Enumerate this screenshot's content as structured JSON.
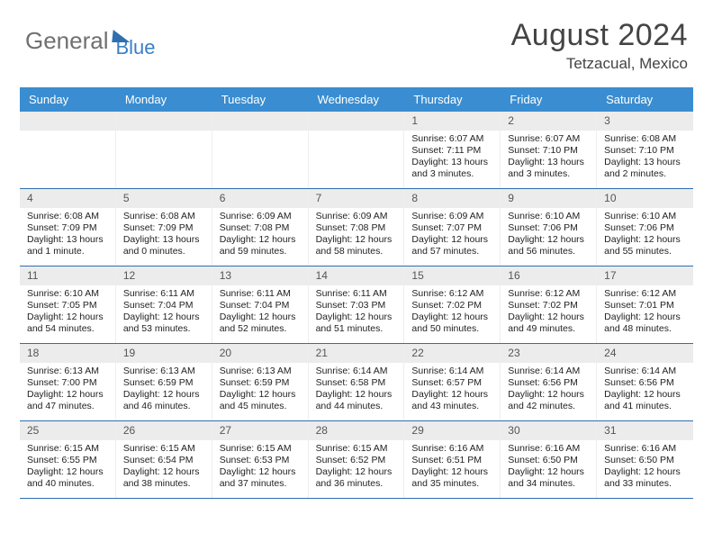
{
  "logo": {
    "part1": "General",
    "part2": "Blue"
  },
  "title": "August 2024",
  "location": "Tetzacual, Mexico",
  "colors": {
    "header_bg": "#3a8dd0",
    "border": "#2f6fb0",
    "daynum_bg": "#ececec",
    "text": "#222222",
    "logo_grey": "#707070",
    "logo_blue": "#3a7fc4"
  },
  "day_names": [
    "Sunday",
    "Monday",
    "Tuesday",
    "Wednesday",
    "Thursday",
    "Friday",
    "Saturday"
  ],
  "weeks": [
    [
      {
        "day": "",
        "sunrise": "",
        "sunset": "",
        "daylight1": "",
        "daylight2": "",
        "empty": true
      },
      {
        "day": "",
        "sunrise": "",
        "sunset": "",
        "daylight1": "",
        "daylight2": "",
        "empty": true
      },
      {
        "day": "",
        "sunrise": "",
        "sunset": "",
        "daylight1": "",
        "daylight2": "",
        "empty": true
      },
      {
        "day": "",
        "sunrise": "",
        "sunset": "",
        "daylight1": "",
        "daylight2": "",
        "empty": true
      },
      {
        "day": "1",
        "sunrise": "Sunrise: 6:07 AM",
        "sunset": "Sunset: 7:11 PM",
        "daylight1": "Daylight: 13 hours",
        "daylight2": "and 3 minutes."
      },
      {
        "day": "2",
        "sunrise": "Sunrise: 6:07 AM",
        "sunset": "Sunset: 7:10 PM",
        "daylight1": "Daylight: 13 hours",
        "daylight2": "and 3 minutes."
      },
      {
        "day": "3",
        "sunrise": "Sunrise: 6:08 AM",
        "sunset": "Sunset: 7:10 PM",
        "daylight1": "Daylight: 13 hours",
        "daylight2": "and 2 minutes."
      }
    ],
    [
      {
        "day": "4",
        "sunrise": "Sunrise: 6:08 AM",
        "sunset": "Sunset: 7:09 PM",
        "daylight1": "Daylight: 13 hours",
        "daylight2": "and 1 minute."
      },
      {
        "day": "5",
        "sunrise": "Sunrise: 6:08 AM",
        "sunset": "Sunset: 7:09 PM",
        "daylight1": "Daylight: 13 hours",
        "daylight2": "and 0 minutes."
      },
      {
        "day": "6",
        "sunrise": "Sunrise: 6:09 AM",
        "sunset": "Sunset: 7:08 PM",
        "daylight1": "Daylight: 12 hours",
        "daylight2": "and 59 minutes."
      },
      {
        "day": "7",
        "sunrise": "Sunrise: 6:09 AM",
        "sunset": "Sunset: 7:08 PM",
        "daylight1": "Daylight: 12 hours",
        "daylight2": "and 58 minutes."
      },
      {
        "day": "8",
        "sunrise": "Sunrise: 6:09 AM",
        "sunset": "Sunset: 7:07 PM",
        "daylight1": "Daylight: 12 hours",
        "daylight2": "and 57 minutes."
      },
      {
        "day": "9",
        "sunrise": "Sunrise: 6:10 AM",
        "sunset": "Sunset: 7:06 PM",
        "daylight1": "Daylight: 12 hours",
        "daylight2": "and 56 minutes."
      },
      {
        "day": "10",
        "sunrise": "Sunrise: 6:10 AM",
        "sunset": "Sunset: 7:06 PM",
        "daylight1": "Daylight: 12 hours",
        "daylight2": "and 55 minutes."
      }
    ],
    [
      {
        "day": "11",
        "sunrise": "Sunrise: 6:10 AM",
        "sunset": "Sunset: 7:05 PM",
        "daylight1": "Daylight: 12 hours",
        "daylight2": "and 54 minutes."
      },
      {
        "day": "12",
        "sunrise": "Sunrise: 6:11 AM",
        "sunset": "Sunset: 7:04 PM",
        "daylight1": "Daylight: 12 hours",
        "daylight2": "and 53 minutes."
      },
      {
        "day": "13",
        "sunrise": "Sunrise: 6:11 AM",
        "sunset": "Sunset: 7:04 PM",
        "daylight1": "Daylight: 12 hours",
        "daylight2": "and 52 minutes."
      },
      {
        "day": "14",
        "sunrise": "Sunrise: 6:11 AM",
        "sunset": "Sunset: 7:03 PM",
        "daylight1": "Daylight: 12 hours",
        "daylight2": "and 51 minutes."
      },
      {
        "day": "15",
        "sunrise": "Sunrise: 6:12 AM",
        "sunset": "Sunset: 7:02 PM",
        "daylight1": "Daylight: 12 hours",
        "daylight2": "and 50 minutes."
      },
      {
        "day": "16",
        "sunrise": "Sunrise: 6:12 AM",
        "sunset": "Sunset: 7:02 PM",
        "daylight1": "Daylight: 12 hours",
        "daylight2": "and 49 minutes."
      },
      {
        "day": "17",
        "sunrise": "Sunrise: 6:12 AM",
        "sunset": "Sunset: 7:01 PM",
        "daylight1": "Daylight: 12 hours",
        "daylight2": "and 48 minutes."
      }
    ],
    [
      {
        "day": "18",
        "sunrise": "Sunrise: 6:13 AM",
        "sunset": "Sunset: 7:00 PM",
        "daylight1": "Daylight: 12 hours",
        "daylight2": "and 47 minutes."
      },
      {
        "day": "19",
        "sunrise": "Sunrise: 6:13 AM",
        "sunset": "Sunset: 6:59 PM",
        "daylight1": "Daylight: 12 hours",
        "daylight2": "and 46 minutes."
      },
      {
        "day": "20",
        "sunrise": "Sunrise: 6:13 AM",
        "sunset": "Sunset: 6:59 PM",
        "daylight1": "Daylight: 12 hours",
        "daylight2": "and 45 minutes."
      },
      {
        "day": "21",
        "sunrise": "Sunrise: 6:14 AM",
        "sunset": "Sunset: 6:58 PM",
        "daylight1": "Daylight: 12 hours",
        "daylight2": "and 44 minutes."
      },
      {
        "day": "22",
        "sunrise": "Sunrise: 6:14 AM",
        "sunset": "Sunset: 6:57 PM",
        "daylight1": "Daylight: 12 hours",
        "daylight2": "and 43 minutes."
      },
      {
        "day": "23",
        "sunrise": "Sunrise: 6:14 AM",
        "sunset": "Sunset: 6:56 PM",
        "daylight1": "Daylight: 12 hours",
        "daylight2": "and 42 minutes."
      },
      {
        "day": "24",
        "sunrise": "Sunrise: 6:14 AM",
        "sunset": "Sunset: 6:56 PM",
        "daylight1": "Daylight: 12 hours",
        "daylight2": "and 41 minutes."
      }
    ],
    [
      {
        "day": "25",
        "sunrise": "Sunrise: 6:15 AM",
        "sunset": "Sunset: 6:55 PM",
        "daylight1": "Daylight: 12 hours",
        "daylight2": "and 40 minutes."
      },
      {
        "day": "26",
        "sunrise": "Sunrise: 6:15 AM",
        "sunset": "Sunset: 6:54 PM",
        "daylight1": "Daylight: 12 hours",
        "daylight2": "and 38 minutes."
      },
      {
        "day": "27",
        "sunrise": "Sunrise: 6:15 AM",
        "sunset": "Sunset: 6:53 PM",
        "daylight1": "Daylight: 12 hours",
        "daylight2": "and 37 minutes."
      },
      {
        "day": "28",
        "sunrise": "Sunrise: 6:15 AM",
        "sunset": "Sunset: 6:52 PM",
        "daylight1": "Daylight: 12 hours",
        "daylight2": "and 36 minutes."
      },
      {
        "day": "29",
        "sunrise": "Sunrise: 6:16 AM",
        "sunset": "Sunset: 6:51 PM",
        "daylight1": "Daylight: 12 hours",
        "daylight2": "and 35 minutes."
      },
      {
        "day": "30",
        "sunrise": "Sunrise: 6:16 AM",
        "sunset": "Sunset: 6:50 PM",
        "daylight1": "Daylight: 12 hours",
        "daylight2": "and 34 minutes."
      },
      {
        "day": "31",
        "sunrise": "Sunrise: 6:16 AM",
        "sunset": "Sunset: 6:50 PM",
        "daylight1": "Daylight: 12 hours",
        "daylight2": "and 33 minutes."
      }
    ]
  ]
}
